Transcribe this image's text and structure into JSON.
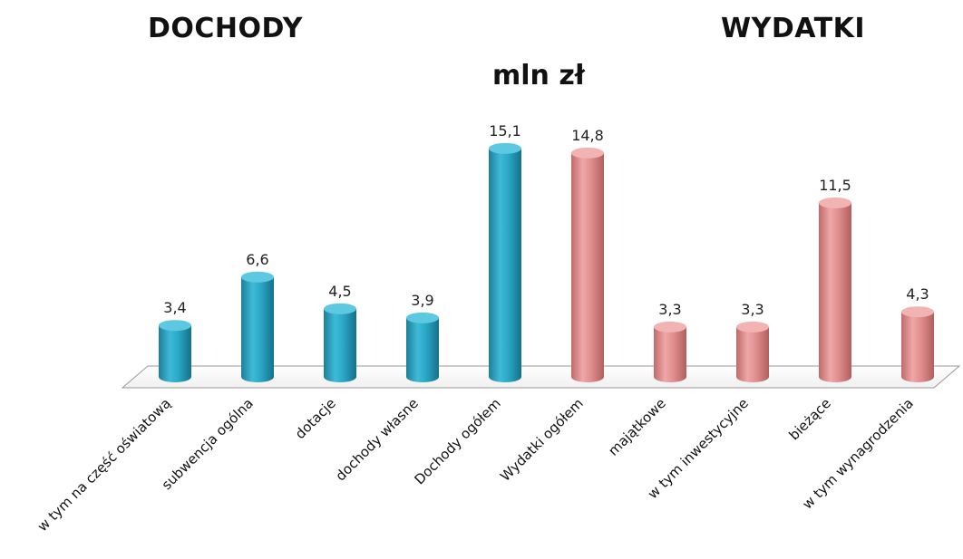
{
  "header": {
    "left_title": "DOCHODY",
    "right_title": "WYDATKI",
    "unit": "mln zł"
  },
  "colors": {
    "dochody": "#2AA7C6",
    "wydatki": "#E08E8E"
  },
  "chart_data": {
    "type": "bar",
    "categories": [
      "w tym na część oświatową",
      "subwencja ogólna",
      "dotacje",
      "dochody własne",
      "Dochody ogółem",
      "Wydatki ogółem",
      "majątkowe",
      "w tym inwestycyjne",
      "bieżące",
      "w tym wynagrodzenia"
    ],
    "values": [
      3.4,
      6.6,
      4.5,
      3.9,
      15.1,
      14.8,
      3.3,
      3.3,
      11.5,
      4.3
    ],
    "value_labels": [
      "3,4",
      "6,6",
      "4,5",
      "3,9",
      "15,1",
      "14,8",
      "3,3",
      "3,3",
      "11,5",
      "4,3"
    ],
    "groups": [
      "dochody",
      "dochody",
      "dochody",
      "dochody",
      "dochody",
      "wydatki",
      "wydatki",
      "wydatki",
      "wydatki",
      "wydatki"
    ],
    "ylim": [
      0,
      16
    ]
  }
}
